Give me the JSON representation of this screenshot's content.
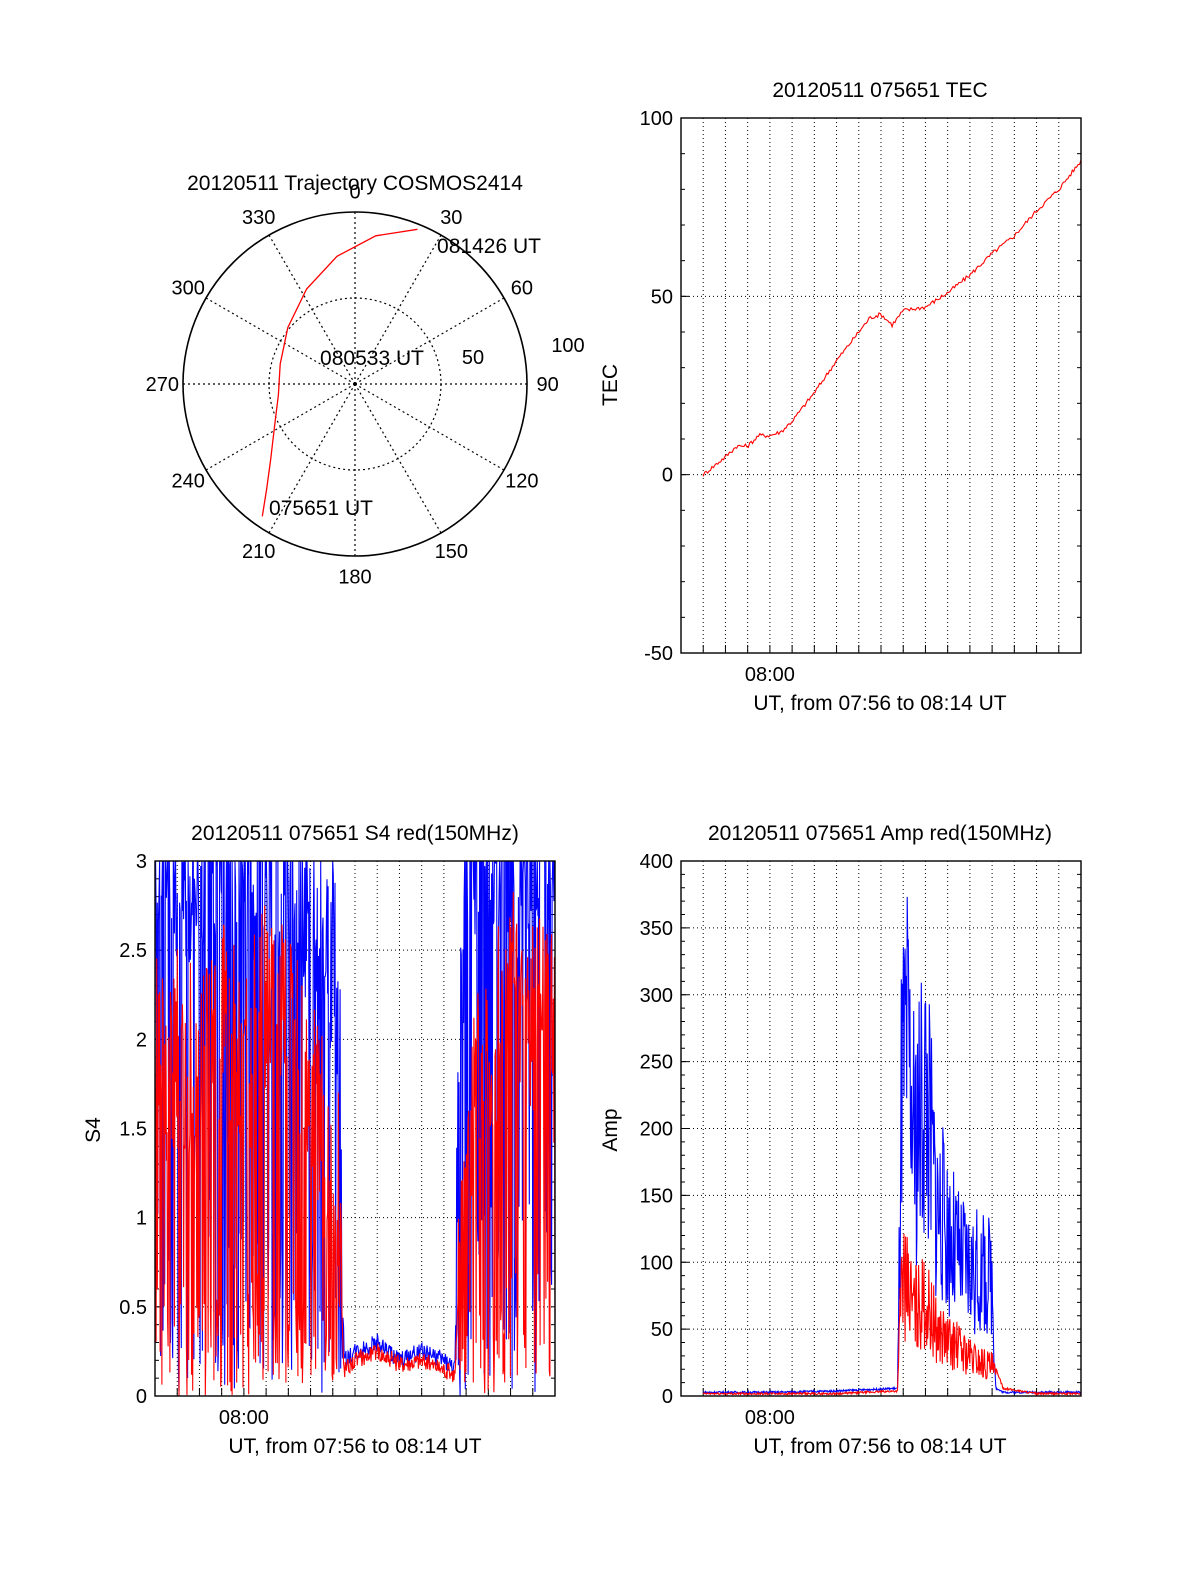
{
  "colors": {
    "red": "#ff0000",
    "blue": "#0000ff",
    "axis": "#000000",
    "background": "#ffffff"
  },
  "chart_data": [
    {
      "type": "polar",
      "title": "20120511 Trajectory COSMOS2414",
      "angle_labels": [
        "0",
        "30",
        "60",
        "90",
        "120",
        "150",
        "180",
        "210",
        "240",
        "270",
        "300",
        "330"
      ],
      "radial_labels": [
        "50",
        "100"
      ],
      "rlim": [
        0,
        100
      ],
      "grid": true,
      "series": [
        {
          "color": "red",
          "points": [
            {
              "az": 215,
              "r": 94
            },
            {
              "az": 220,
              "r": 80
            },
            {
              "az": 228,
              "r": 66
            },
            {
              "az": 242,
              "r": 53
            },
            {
              "az": 262,
              "r": 45
            },
            {
              "az": 285,
              "r": 45
            },
            {
              "az": 310,
              "r": 51
            },
            {
              "az": 333,
              "r": 62
            },
            {
              "az": 352,
              "r": 75
            },
            {
              "az": 8,
              "r": 87
            },
            {
              "az": 22,
              "r": 97
            }
          ]
        }
      ],
      "annotations": [
        {
          "text": "075651 UT",
          "az": 205,
          "r": 82
        },
        {
          "text": "080533 UT",
          "az": 350,
          "r": 12
        },
        {
          "text": "081426 UT",
          "az": 38,
          "r": 100
        }
      ]
    },
    {
      "type": "line",
      "title": "20120511 075651 TEC",
      "xlabel": "UT, from 07:56 to 08:14 UT",
      "ylabel": "TEC",
      "xlim": [
        "07:56:00",
        "08:14:00"
      ],
      "ylim": [
        -50,
        100
      ],
      "yticks": [
        "100",
        "50",
        "0",
        "-50"
      ],
      "xtick_labels": [
        "08:00"
      ],
      "grid": true,
      "series": [
        {
          "color": "red",
          "x": [
            "07:57:00",
            "07:58:00",
            "07:58:30",
            "07:59:00",
            "07:59:30",
            "08:00:00",
            "08:00:30",
            "08:01:00",
            "08:02:00",
            "08:03:00",
            "08:04:00",
            "08:04:30",
            "08:05:00",
            "08:05:30",
            "08:06:00",
            "08:07:00",
            "08:08:00",
            "08:09:00",
            "08:10:00",
            "08:11:00",
            "08:12:00",
            "08:13:00",
            "08:14:00"
          ],
          "values": [
            0,
            5,
            8,
            8,
            11,
            11,
            12,
            15,
            23,
            32,
            40,
            44,
            45,
            42,
            46,
            47,
            51,
            56,
            62,
            67,
            74,
            80,
            88
          ]
        }
      ]
    },
    {
      "type": "line",
      "title": "20120511 075651 S4 red(150MHz)",
      "xlabel": "UT, from 07:56 to 08:14 UT",
      "ylabel": "S4",
      "xlim": [
        "07:56:00",
        "08:14:00"
      ],
      "ylim": [
        0,
        3
      ],
      "yticks": [
        "3",
        "2.5",
        "2",
        "1.5",
        "1",
        "0.5",
        "0"
      ],
      "xtick_labels": [
        "08:00"
      ],
      "grid": true,
      "series": [
        {
          "color": "blue",
          "x": [
            "07:56:00",
            "07:57:00",
            "07:58:00",
            "07:59:00",
            "08:00:00",
            "08:01:00",
            "08:02:00",
            "08:03:00",
            "08:04:00",
            "08:04:20",
            "08:04:30",
            "08:05:00",
            "08:06:00",
            "08:07:00",
            "08:08:00",
            "08:09:00",
            "08:09:30",
            "08:09:40",
            "08:10:00",
            "08:11:00",
            "08:12:00",
            "08:13:00",
            "08:14:00"
          ],
          "values": [
            2.9,
            2.6,
            2.7,
            2.8,
            2.6,
            2.5,
            2.7,
            2.4,
            2.1,
            1.8,
            0.2,
            0.25,
            0.3,
            0.2,
            0.25,
            0.2,
            0.15,
            1.5,
            2.7,
            2.8,
            2.6,
            2.9,
            2.8
          ]
        },
        {
          "color": "red",
          "x": [
            "07:56:00",
            "07:57:00",
            "07:58:00",
            "07:59:00",
            "08:00:00",
            "08:01:00",
            "08:02:00",
            "08:03:00",
            "08:04:00",
            "08:04:20",
            "08:04:30",
            "08:05:00",
            "08:06:00",
            "08:07:00",
            "08:08:00",
            "08:09:00",
            "08:09:30",
            "08:09:40",
            "08:10:00",
            "08:11:00",
            "08:12:00",
            "08:13:00",
            "08:14:00"
          ],
          "values": [
            1.5,
            1.6,
            1.4,
            1.7,
            1.5,
            1.9,
            1.7,
            1.3,
            0.9,
            0.7,
            0.15,
            0.2,
            0.25,
            0.18,
            0.2,
            0.15,
            0.12,
            0.6,
            1.2,
            1.7,
            1.9,
            1.8,
            1.6
          ]
        }
      ]
    },
    {
      "type": "line",
      "title": "20120511 075651 Amp red(150MHz)",
      "xlabel": "UT, from 07:56 to 08:14 UT",
      "ylabel": "Amp",
      "xlim": [
        "07:56:00",
        "08:14:00"
      ],
      "ylim": [
        0,
        400
      ],
      "yticks": [
        "400",
        "350",
        "300",
        "250",
        "200",
        "150",
        "100",
        "50",
        "0"
      ],
      "xtick_labels": [
        "08:00"
      ],
      "grid": true,
      "series": [
        {
          "color": "blue",
          "x": [
            "07:57:00",
            "08:00:00",
            "08:03:00",
            "08:05:45",
            "08:05:55",
            "08:06:10",
            "08:06:30",
            "08:07:00",
            "08:07:30",
            "08:08:00",
            "08:08:30",
            "08:09:00",
            "08:10:00",
            "08:10:10",
            "08:10:30",
            "08:12:00",
            "08:14:00"
          ],
          "values": [
            2,
            2,
            3,
            5,
            300,
            350,
            260,
            320,
            200,
            170,
            140,
            130,
            120,
            5,
            2,
            2,
            2
          ]
        },
        {
          "color": "red",
          "x": [
            "07:57:00",
            "08:00:00",
            "08:03:00",
            "08:05:45",
            "08:05:55",
            "08:06:10",
            "08:06:30",
            "08:07:00",
            "08:07:30",
            "08:08:00",
            "08:08:30",
            "08:09:00",
            "08:10:00",
            "08:10:10",
            "08:10:30",
            "08:12:00",
            "08:14:00"
          ],
          "values": [
            1,
            1,
            1,
            3,
            120,
            110,
            90,
            95,
            70,
            55,
            50,
            40,
            30,
            20,
            5,
            1,
            1
          ]
        }
      ]
    }
  ]
}
